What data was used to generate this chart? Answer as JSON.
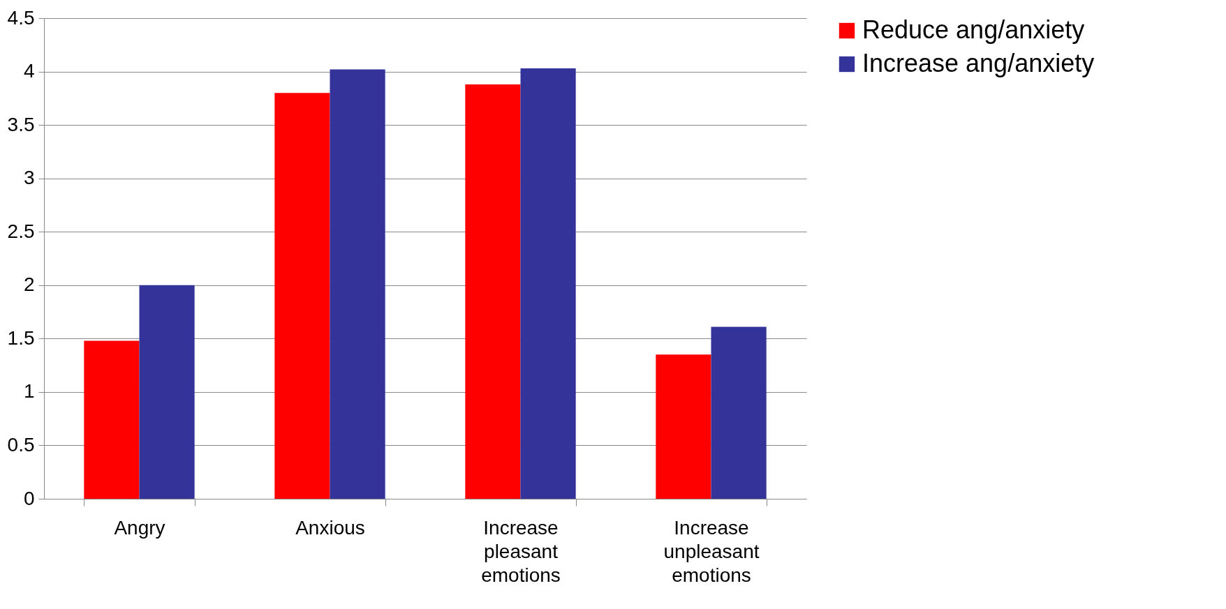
{
  "chart_data": {
    "type": "bar",
    "categories": [
      "Angry",
      "Anxious",
      "Increase pleasant emotions",
      "Increase unpleasant emotions"
    ],
    "series": [
      {
        "name": "Reduce ang/anxiety",
        "color": "#ff0000",
        "values": [
          1.48,
          3.8,
          3.88,
          1.35
        ]
      },
      {
        "name": "Increase ang/anxiety",
        "color": "#333399",
        "values": [
          2.0,
          4.02,
          4.03,
          1.61
        ]
      }
    ],
    "ylim": [
      0,
      4.5
    ],
    "yticks": [
      0,
      0.5,
      1,
      1.5,
      2,
      2.5,
      3,
      3.5,
      4,
      4.5
    ],
    "grid": "y",
    "legend": "right"
  }
}
